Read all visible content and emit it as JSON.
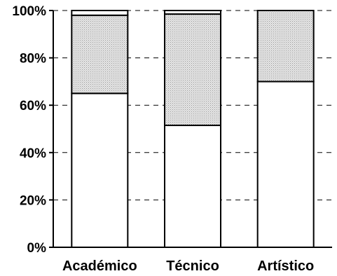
{
  "chart_data": {
    "type": "bar",
    "stacked": true,
    "normalized_percent": true,
    "categories": [
      "Académico",
      "Técnico",
      "Artístico"
    ],
    "series": [
      {
        "values": [
          65,
          51.5,
          70
        ],
        "fill": "#ffffff"
      },
      {
        "values": [
          33,
          47,
          30
        ],
        "fill": "#d4d4d4"
      },
      {
        "values": [
          2,
          1.5,
          0
        ],
        "fill": "#ffffff"
      }
    ],
    "ylim": [
      0,
      100
    ],
    "yticks": [
      {
        "value": 0,
        "label": "0%"
      },
      {
        "value": 20,
        "label": "20%"
      },
      {
        "value": 40,
        "label": "40%"
      },
      {
        "value": 60,
        "label": "60%"
      },
      {
        "value": 80,
        "label": "80%"
      },
      {
        "value": 100,
        "label": "100%"
      }
    ],
    "grid": "dashed horizontal",
    "colors": {
      "axis": "#000000",
      "grid": "#000000"
    }
  }
}
